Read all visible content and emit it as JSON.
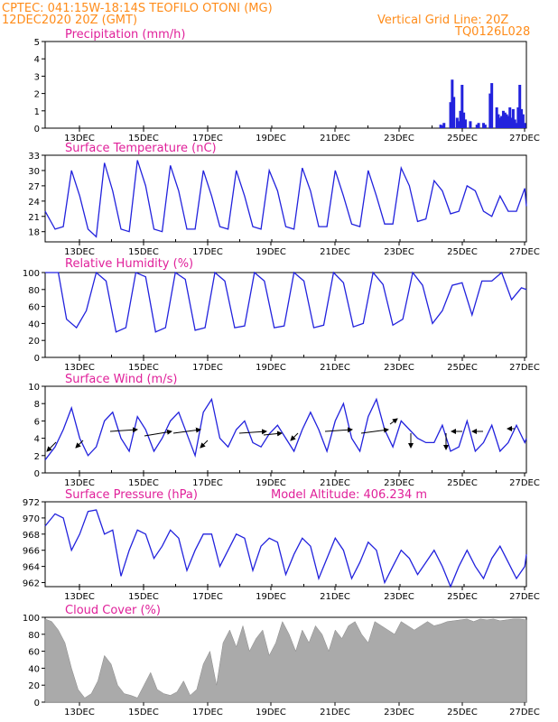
{
  "header": {
    "line1": "CPTEC:   041:15W-18:14S   TEOFILO OTONI (MG)",
    "line2": "12DEC2020 20Z (GMT)",
    "grid_note": "Vertical Grid Line: 20Z",
    "code": "TQ0126L028"
  },
  "colors": {
    "header": "#ff8c1a",
    "title": "#e0209a",
    "line": "#2222dd",
    "bar": "#2222dd",
    "cloud": "#aaaaaa",
    "arrow": "#000000"
  },
  "chart_data": [
    {
      "id": "precip",
      "type": "bar",
      "title": "Precipitation (mm/h)",
      "xlabels": [
        "13DEC",
        "15DEC",
        "17DEC",
        "19DEC",
        "21DEC",
        "23DEC",
        "25DEC",
        "27DEC"
      ],
      "xlim": [
        0,
        14.6
      ],
      "ylim": [
        0,
        5
      ],
      "yticks": [
        0,
        1,
        2,
        3,
        4,
        5
      ],
      "x": [
        12.0,
        12.05,
        12.1,
        12.3,
        12.35,
        12.4,
        12.5,
        12.55,
        12.6,
        12.65,
        12.7,
        12.75,
        12.9,
        13.1,
        13.15,
        13.3,
        13.35,
        13.5,
        13.55,
        13.7,
        13.75,
        13.8,
        13.85,
        13.9,
        13.95,
        14.0,
        14.05,
        14.1,
        14.15,
        14.2,
        14.25,
        14.3,
        14.35,
        14.4,
        14.45,
        14.5,
        14.55
      ],
      "values": [
        0.2,
        0.15,
        0.3,
        1.5,
        2.8,
        1.8,
        0.6,
        0.4,
        1.0,
        2.5,
        0.9,
        0.5,
        0.4,
        0.2,
        0.3,
        0.3,
        0.2,
        2.0,
        2.6,
        1.2,
        0.8,
        0.6,
        0.7,
        1.0,
        0.9,
        0.8,
        0.7,
        1.2,
        0.6,
        1.1,
        0.5,
        0.3,
        1.2,
        2.5,
        1.1,
        0.8,
        0.3
      ]
    },
    {
      "id": "temp",
      "type": "line",
      "title": "Surface Temperature (nC)",
      "xlabels": [
        "13DEC",
        "15DEC",
        "17DEC",
        "19DEC",
        "21DEC",
        "23DEC",
        "25DEC",
        "27DEC"
      ],
      "xlim": [
        0,
        14.6
      ],
      "ylim": [
        16,
        33
      ],
      "yticks": [
        18,
        21,
        24,
        27,
        30,
        33
      ],
      "x": [
        0,
        0.3,
        0.55,
        0.8,
        1.05,
        1.3,
        1.55,
        1.8,
        2.05,
        2.3,
        2.55,
        2.8,
        3.05,
        3.3,
        3.55,
        3.8,
        4.05,
        4.3,
        4.55,
        4.8,
        5.05,
        5.3,
        5.55,
        5.8,
        6.05,
        6.3,
        6.55,
        6.8,
        7.05,
        7.3,
        7.55,
        7.8,
        8.05,
        8.3,
        8.55,
        8.8,
        9.05,
        9.3,
        9.55,
        9.8,
        10.05,
        10.3,
        10.55,
        10.8,
        11.05,
        11.3,
        11.55,
        11.8,
        12.05,
        12.3,
        12.55,
        12.8,
        13.05,
        13.3,
        13.55,
        13.8,
        14.05,
        14.3,
        14.55,
        14.6
      ],
      "values": [
        22,
        18.5,
        19,
        30,
        25,
        18.5,
        17,
        31.5,
        26,
        18.5,
        18,
        32,
        27,
        18.5,
        18,
        31,
        26,
        18.5,
        18.5,
        30,
        25,
        19,
        18.5,
        30,
        25,
        19,
        18.5,
        30,
        26,
        19,
        18.5,
        30.5,
        26,
        19,
        19,
        30,
        25,
        19.5,
        19,
        30,
        25,
        19.5,
        19.5,
        30.5,
        27,
        20,
        20.5,
        28,
        26,
        21.5,
        22,
        27,
        26,
        22,
        21,
        25,
        22,
        22,
        26.5,
        23
      ]
    },
    {
      "id": "rh",
      "type": "line",
      "title": "Relative Humidity (%)",
      "xlabels": [
        "13DEC",
        "15DEC",
        "17DEC",
        "19DEC",
        "21DEC",
        "23DEC",
        "25DEC",
        "27DEC"
      ],
      "xlim": [
        0,
        14.6
      ],
      "ylim": [
        0,
        100
      ],
      "yticks": [
        0,
        20,
        40,
        60,
        80,
        100
      ],
      "x": [
        0,
        0.4,
        0.65,
        0.95,
        1.25,
        1.55,
        1.85,
        2.15,
        2.45,
        2.75,
        3.05,
        3.35,
        3.65,
        3.95,
        4.25,
        4.55,
        4.85,
        5.15,
        5.45,
        5.75,
        6.05,
        6.35,
        6.65,
        6.95,
        7.25,
        7.55,
        7.85,
        8.15,
        8.45,
        8.75,
        9.05,
        9.35,
        9.65,
        9.95,
        10.25,
        10.55,
        10.85,
        11.15,
        11.45,
        11.75,
        12.05,
        12.35,
        12.65,
        12.95,
        13.25,
        13.55,
        13.85,
        14.15,
        14.45,
        14.6
      ],
      "values": [
        100,
        100,
        45,
        35,
        55,
        100,
        90,
        30,
        35,
        100,
        95,
        30,
        35,
        100,
        92,
        32,
        35,
        100,
        90,
        35,
        37,
        100,
        90,
        35,
        37,
        100,
        90,
        35,
        38,
        100,
        88,
        36,
        40,
        100,
        86,
        38,
        45,
        100,
        85,
        40,
        55,
        85,
        88,
        50,
        90,
        90,
        100,
        68,
        82,
        80
      ]
    },
    {
      "id": "wind",
      "type": "line",
      "title": "Surface Wind (m/s)",
      "xlabels": [
        "13DEC",
        "15DEC",
        "17DEC",
        "19DEC",
        "21DEC",
        "23DEC",
        "25DEC",
        "27DEC"
      ],
      "xlim": [
        0,
        14.6
      ],
      "ylim": [
        0,
        10
      ],
      "yticks": [
        0,
        2,
        4,
        6,
        8,
        10
      ],
      "x": [
        0,
        0.3,
        0.55,
        0.8,
        1.05,
        1.3,
        1.55,
        1.8,
        2.05,
        2.3,
        2.55,
        2.8,
        3.05,
        3.3,
        3.55,
        3.8,
        4.05,
        4.3,
        4.55,
        4.8,
        5.05,
        5.3,
        5.55,
        5.8,
        6.05,
        6.3,
        6.55,
        6.8,
        7.05,
        7.3,
        7.55,
        7.8,
        8.05,
        8.3,
        8.55,
        8.8,
        9.05,
        9.3,
        9.55,
        9.8,
        10.05,
        10.3,
        10.55,
        10.8,
        11.05,
        11.3,
        11.55,
        11.8,
        12.05,
        12.3,
        12.55,
        12.8,
        13.05,
        13.3,
        13.55,
        13.8,
        14.05,
        14.3,
        14.55,
        14.6
      ],
      "values": [
        1.5,
        3,
        5,
        7.5,
        4,
        2,
        3,
        6,
        7,
        4,
        2.5,
        6.5,
        5,
        2.5,
        4,
        6,
        7,
        4.5,
        2,
        7,
        8.5,
        4,
        3,
        5,
        6,
        3.5,
        3,
        4.5,
        5.5,
        4,
        2.5,
        5,
        7,
        5,
        2.5,
        6,
        8,
        4,
        2.5,
        6.5,
        8.5,
        5,
        3,
        6,
        5,
        4,
        3.5,
        3.5,
        5.5,
        2.5,
        3,
        6,
        2.5,
        3.5,
        5.5,
        2.5,
        3.5,
        5.5,
        3.5,
        4
      ]
    },
    {
      "id": "pressure",
      "type": "line",
      "title": "Surface Pressure (hPa)",
      "subtitle": "Model Altitude: 406.234 m",
      "xlabels": [
        "13DEC",
        "15DEC",
        "17DEC",
        "19DEC",
        "21DEC",
        "23DEC",
        "25DEC",
        "27DEC"
      ],
      "xlim": [
        0,
        14.6
      ],
      "ylim": [
        961.5,
        972
      ],
      "yticks": [
        962,
        964,
        966,
        968,
        970,
        972
      ],
      "x": [
        0,
        0.3,
        0.55,
        0.8,
        1.05,
        1.3,
        1.55,
        1.8,
        2.05,
        2.3,
        2.55,
        2.8,
        3.05,
        3.3,
        3.55,
        3.8,
        4.05,
        4.3,
        4.55,
        4.8,
        5.05,
        5.3,
        5.55,
        5.8,
        6.05,
        6.3,
        6.55,
        6.8,
        7.05,
        7.3,
        7.55,
        7.8,
        8.05,
        8.3,
        8.55,
        8.8,
        9.05,
        9.3,
        9.55,
        9.8,
        10.05,
        10.3,
        10.55,
        10.8,
        11.05,
        11.3,
        11.55,
        11.8,
        12.05,
        12.3,
        12.55,
        12.8,
        13.05,
        13.3,
        13.55,
        13.8,
        14.05,
        14.3,
        14.55,
        14.6
      ],
      "values": [
        969,
        970.5,
        970,
        966,
        968,
        970.8,
        971,
        968,
        968.5,
        962.8,
        966,
        968.5,
        968,
        965,
        966.5,
        968.5,
        967.5,
        963.5,
        966,
        968,
        968,
        964,
        966,
        968,
        967.5,
        963.5,
        966.5,
        967.5,
        967,
        963,
        965.5,
        967.5,
        966.5,
        962.5,
        965,
        967.5,
        966,
        962.5,
        964.5,
        967,
        966,
        962,
        964,
        966,
        965,
        963,
        964.5,
        966,
        964,
        961.5,
        964,
        966,
        964,
        962.5,
        965,
        966.5,
        964.5,
        962.5,
        964,
        965.5
      ]
    },
    {
      "id": "cloud",
      "type": "area",
      "title": "Cloud Cover (%)",
      "xlabels": [
        "13DEC",
        "15DEC",
        "17DEC",
        "19DEC",
        "21DEC",
        "23DEC",
        "25DEC",
        "27DEC"
      ],
      "xlim": [
        0,
        14.6
      ],
      "ylim": [
        0,
        100
      ],
      "yticks": [
        0,
        20,
        40,
        60,
        80,
        100
      ],
      "x": [
        0,
        0.2,
        0.4,
        0.6,
        0.8,
        1.0,
        1.2,
        1.4,
        1.6,
        1.8,
        2.0,
        2.2,
        2.4,
        2.6,
        2.8,
        3.0,
        3.2,
        3.4,
        3.6,
        3.8,
        4.0,
        4.2,
        4.4,
        4.6,
        4.8,
        5.0,
        5.2,
        5.4,
        5.6,
        5.8,
        6.0,
        6.2,
        6.4,
        6.6,
        6.8,
        7.0,
        7.2,
        7.4,
        7.6,
        7.8,
        8.0,
        8.2,
        8.4,
        8.6,
        8.8,
        9.0,
        9.2,
        9.4,
        9.6,
        9.8,
        10.0,
        10.2,
        10.4,
        10.6,
        10.8,
        11.0,
        11.2,
        11.4,
        11.6,
        11.8,
        12.0,
        12.2,
        12.4,
        12.6,
        12.8,
        13.0,
        13.2,
        13.4,
        13.6,
        13.8,
        14.0,
        14.2,
        14.4,
        14.6
      ],
      "values": [
        98,
        95,
        85,
        70,
        40,
        15,
        5,
        10,
        25,
        55,
        45,
        20,
        10,
        8,
        5,
        20,
        35,
        15,
        10,
        8,
        12,
        25,
        8,
        15,
        45,
        60,
        20,
        70,
        85,
        65,
        90,
        60,
        75,
        85,
        55,
        70,
        95,
        80,
        60,
        85,
        70,
        90,
        80,
        60,
        85,
        75,
        90,
        95,
        80,
        70,
        95,
        90,
        85,
        80,
        95,
        90,
        85,
        90,
        95,
        90,
        92,
        95,
        96,
        97,
        98,
        95,
        98,
        97,
        98,
        96,
        97,
        98,
        98,
        97
      ]
    }
  ]
}
